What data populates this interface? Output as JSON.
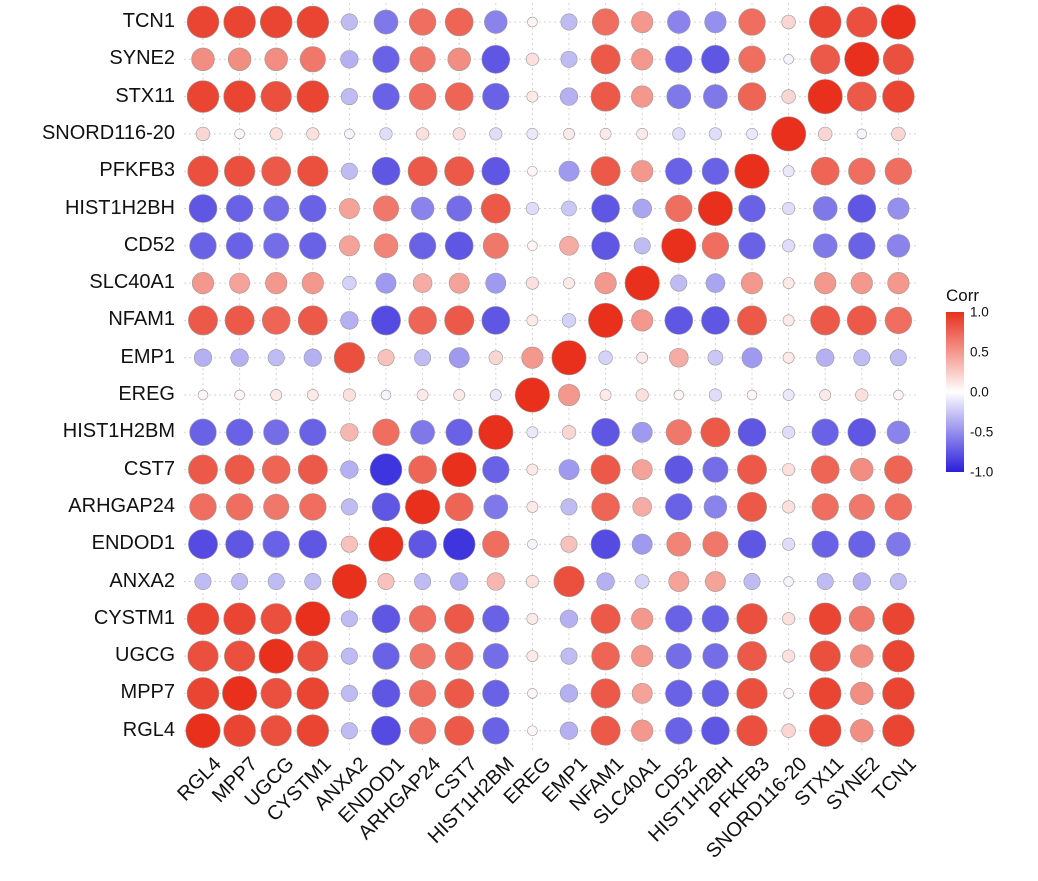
{
  "chart_data": {
    "type": "heatmap",
    "subtype": "correlation-matrix-circles",
    "y_labels": [
      "TCN1",
      "SYNE2",
      "STX11",
      "SNORD116-20",
      "PFKFB3",
      "HIST1H2BH",
      "CD52",
      "SLC40A1",
      "NFAM1",
      "EMP1",
      "EREG",
      "HIST1H2BM",
      "CST7",
      "ARHGAP24",
      "ENDOD1",
      "ANXA2",
      "CYSTM1",
      "UGCG",
      "MPP7",
      "RGL4"
    ],
    "x_labels": [
      "RGL4",
      "MPP7",
      "UGCG",
      "CYSTM1",
      "ANXA2",
      "ENDOD1",
      "ARHGAP24",
      "CST7",
      "HIST1H2BM",
      "EREG",
      "EMP1",
      "NFAM1",
      "SLC40A1",
      "CD52",
      "HIST1H2BH",
      "PFKFB3",
      "SNORD116-20",
      "STX11",
      "SYNE2",
      "TCN1"
    ],
    "matrix_order_note": "matrix[i][j] = correlation of y_labels[i] with y_labels[j]; x axis is reversed order of y axis",
    "matrix": [
      [
        1,
        0.85,
        0.9,
        0.2,
        0.7,
        -0.5,
        -0.55,
        0.5,
        0.7,
        -0.3,
        0.05,
        -0.55,
        0.75,
        0.7,
        -0.6,
        -0.3,
        0.9,
        0.9,
        0.9,
        0.9
      ],
      [
        0.85,
        1,
        0.8,
        -0.05,
        0.7,
        -0.75,
        -0.7,
        0.5,
        0.8,
        -0.3,
        0.15,
        -0.75,
        0.55,
        0.65,
        -0.7,
        -0.35,
        0.65,
        0.55,
        0.55,
        0.55
      ],
      [
        0.9,
        0.8,
        1,
        0.2,
        0.75,
        -0.6,
        -0.6,
        0.5,
        0.8,
        -0.35,
        0.1,
        -0.7,
        0.75,
        0.7,
        -0.7,
        -0.3,
        0.9,
        0.85,
        0.9,
        0.9
      ],
      [
        0.2,
        -0.05,
        0.2,
        1,
        -0.1,
        -0.15,
        -0.15,
        0.1,
        0.1,
        0.1,
        -0.1,
        -0.15,
        0.15,
        0.15,
        -0.15,
        -0.05,
        0.15,
        0.15,
        0.05,
        0.2
      ],
      [
        0.7,
        0.7,
        0.75,
        -0.1,
        1,
        -0.7,
        -0.7,
        0.5,
        0.8,
        -0.45,
        0.05,
        -0.75,
        0.8,
        0.8,
        -0.75,
        -0.3,
        0.85,
        0.8,
        0.85,
        0.85
      ],
      [
        -0.5,
        -0.75,
        -0.6,
        -0.15,
        -0.7,
        1,
        0.7,
        -0.4,
        -0.75,
        -0.25,
        -0.15,
        0.8,
        -0.65,
        -0.55,
        0.65,
        0.45,
        -0.7,
        -0.65,
        -0.7,
        -0.75
      ],
      [
        -0.55,
        -0.7,
        -0.6,
        -0.15,
        -0.7,
        0.7,
        1,
        -0.3,
        -0.75,
        0.4,
        0.05,
        0.65,
        -0.75,
        -0.7,
        0.6,
        0.45,
        -0.7,
        -0.65,
        -0.7,
        -0.7
      ],
      [
        0.5,
        0.5,
        0.5,
        0.1,
        0.5,
        -0.4,
        -0.3,
        1,
        0.5,
        0.1,
        0.15,
        -0.45,
        0.45,
        0.4,
        -0.45,
        -0.2,
        0.5,
        0.5,
        0.45,
        0.5
      ],
      [
        0.7,
        0.8,
        0.8,
        0.1,
        0.8,
        -0.75,
        -0.75,
        0.5,
        1,
        -0.2,
        0.1,
        -0.75,
        0.8,
        0.75,
        -0.8,
        -0.35,
        0.8,
        0.75,
        0.8,
        0.8
      ],
      [
        -0.3,
        -0.3,
        -0.35,
        0.1,
        -0.45,
        -0.25,
        0.4,
        0.1,
        -0.2,
        1,
        0.5,
        0.2,
        -0.45,
        -0.3,
        0.3,
        0.85,
        -0.35,
        -0.3,
        -0.35,
        -0.35
      ],
      [
        0.05,
        0.15,
        0.1,
        -0.1,
        0.05,
        -0.15,
        0.05,
        0.15,
        0.1,
        0.5,
        1,
        -0.1,
        0.1,
        0.1,
        -0.05,
        0.15,
        0.1,
        0.1,
        0.05,
        0.05
      ],
      [
        -0.55,
        -0.75,
        -0.7,
        -0.15,
        -0.75,
        0.8,
        0.65,
        -0.45,
        -0.75,
        0.2,
        -0.1,
        1,
        -0.7,
        -0.6,
        0.7,
        0.35,
        -0.7,
        -0.65,
        -0.7,
        -0.7
      ],
      [
        0.75,
        0.55,
        0.75,
        0.15,
        0.8,
        -0.65,
        -0.75,
        0.45,
        0.8,
        -0.45,
        0.1,
        -0.7,
        1,
        0.75,
        -0.9,
        -0.35,
        0.8,
        0.75,
        0.8,
        0.8
      ],
      [
        0.7,
        0.65,
        0.7,
        0.15,
        0.8,
        -0.55,
        -0.7,
        0.4,
        0.75,
        -0.3,
        0.1,
        -0.6,
        0.75,
        1,
        -0.75,
        -0.3,
        0.7,
        0.65,
        0.7,
        0.7
      ],
      [
        -0.6,
        -0.7,
        -0.7,
        -0.15,
        -0.75,
        0.65,
        0.6,
        -0.45,
        -0.8,
        0.3,
        -0.05,
        0.7,
        -0.9,
        -0.75,
        1,
        0.3,
        -0.75,
        -0.7,
        -0.75,
        -0.8
      ],
      [
        -0.3,
        -0.35,
        -0.3,
        -0.05,
        -0.3,
        0.45,
        0.45,
        -0.2,
        -0.35,
        0.85,
        0.15,
        0.35,
        -0.35,
        -0.3,
        0.3,
        1,
        -0.3,
        -0.3,
        -0.3,
        -0.3
      ],
      [
        0.9,
        0.65,
        0.9,
        0.15,
        0.85,
        -0.7,
        -0.7,
        0.5,
        0.8,
        -0.35,
        0.1,
        -0.7,
        0.8,
        0.7,
        -0.75,
        -0.3,
        1,
        0.85,
        0.9,
        0.9
      ],
      [
        0.9,
        0.55,
        0.85,
        0.15,
        0.8,
        -0.65,
        -0.65,
        0.5,
        0.75,
        -0.3,
        0.1,
        -0.65,
        0.75,
        0.65,
        -0.7,
        -0.3,
        0.85,
        1,
        0.85,
        0.85
      ],
      [
        0.9,
        0.55,
        0.9,
        0.05,
        0.85,
        -0.7,
        -0.7,
        0.45,
        0.8,
        -0.35,
        0.05,
        -0.7,
        0.8,
        0.7,
        -0.75,
        -0.3,
        0.9,
        0.85,
        1,
        0.9
      ],
      [
        0.9,
        0.55,
        0.9,
        0.2,
        0.85,
        -0.75,
        -0.7,
        0.5,
        0.8,
        -0.35,
        0.05,
        -0.7,
        0.8,
        0.7,
        -0.8,
        -0.3,
        0.9,
        0.85,
        0.9,
        1
      ]
    ],
    "colormap": {
      "positive": "#e8301c",
      "zero": "#ffffff",
      "negative": "#2a1edb"
    },
    "legend": {
      "title": "Corr",
      "ticks": [
        "1.0",
        "0.5",
        "0.0",
        "-0.5",
        "-1.0"
      ],
      "tick_values": [
        1,
        0.5,
        0,
        -0.5,
        -1
      ],
      "max": 1,
      "min": -1,
      "position": "right"
    },
    "grid": true
  }
}
